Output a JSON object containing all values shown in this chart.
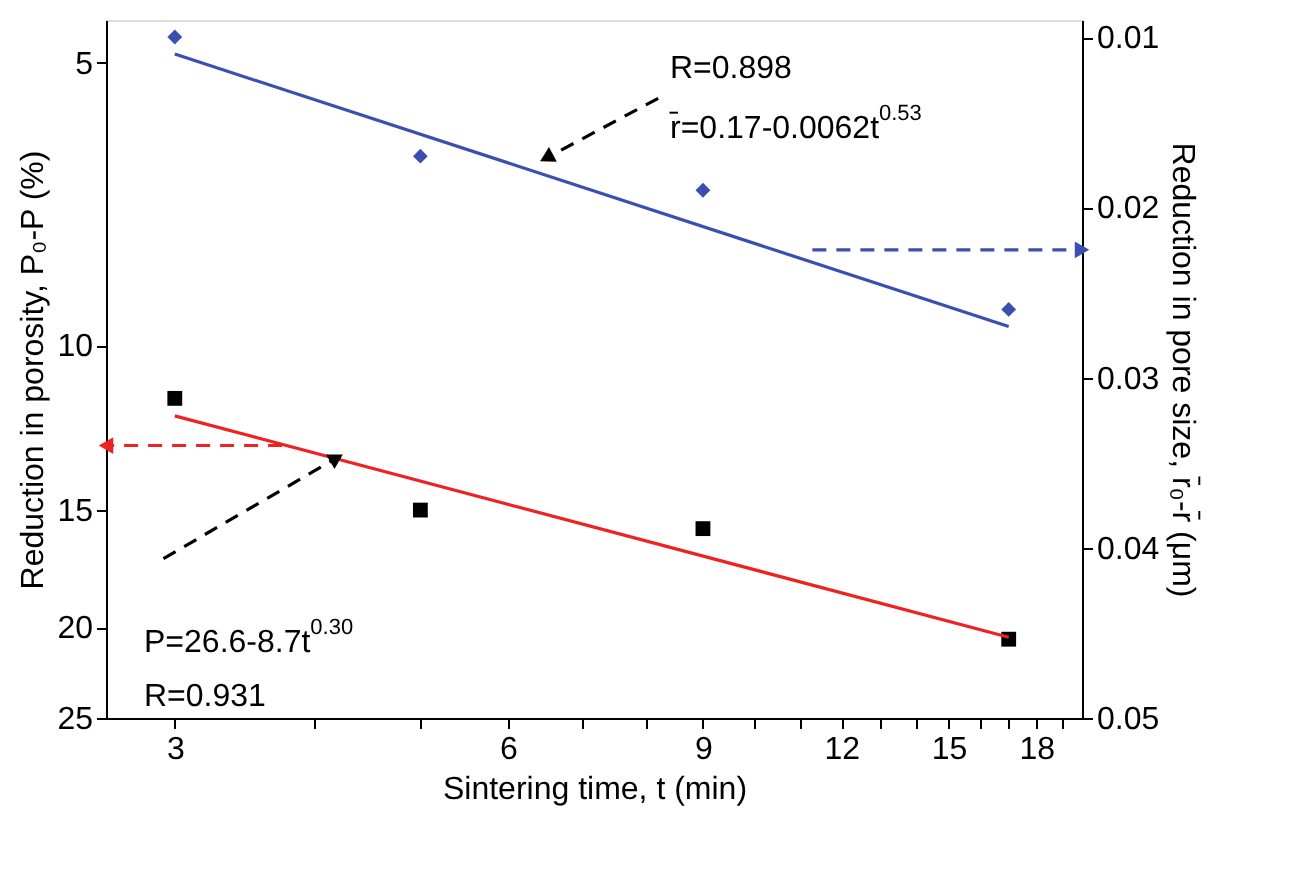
{
  "chart_data": {
    "type": "scatter",
    "xlabel": "Sintering time, t (min)",
    "ylabel": "Reduction in porosity, P₀-P (%)",
    "y2label": "Reduction in pore size, r̄₀-r̄ (μm)",
    "log": "xy",
    "xlim": [
      2.6,
      19.8
    ],
    "xticks": [
      3,
      {
        "value": 4,
        "label": null
      },
      {
        "value": 5,
        "label": null
      },
      6,
      {
        "value": 7,
        "label": null
      },
      {
        "value": 8,
        "label": null
      },
      9,
      {
        "value": 10,
        "label": null
      },
      {
        "value": 11,
        "label": null
      },
      12,
      {
        "value": 13,
        "label": null
      },
      {
        "value": 14,
        "label": null
      },
      15,
      {
        "value": 16,
        "label": null
      },
      {
        "value": 17,
        "label": null
      },
      18,
      {
        "value": 19,
        "label": null
      }
    ],
    "ylim": [
      25,
      4.5
    ],
    "yticks": [
      5,
      10,
      15,
      20,
      25
    ],
    "y2lim": [
      0.05,
      0.009
    ],
    "y2ticks": [
      0.01,
      0.02,
      0.03,
      0.04,
      0.05
    ],
    "grid": false,
    "series": [
      {
        "marker": "square",
        "color": "#000000",
        "x": [
          3,
          5,
          9,
          17
        ],
        "values": [
          11.4,
          15.0,
          15.7,
          20.6
        ]
      },
      {
        "type": "line",
        "color": "#ee2222",
        "x": [
          3,
          17
        ],
        "values": [
          11.9,
          20.5
        ]
      },
      {
        "marker": "diamond",
        "axis": "y2",
        "color": "#3a4fb0",
        "x": [
          3,
          5,
          9,
          17
        ],
        "values": [
          0.01,
          0.017,
          0.019,
          0.026
        ]
      },
      {
        "type": "line",
        "axis": "y2",
        "color": "#3a4fb0",
        "x": [
          3,
          17
        ],
        "values": [
          0.011,
          0.027
        ]
      },
      {
        "type": "line",
        "line_style": "dashed",
        "marker": "triangle",
        "color": "#ee2222",
        "x": [
          3.75,
          2.6
        ],
        "values": [
          12.8,
          12.8
        ]
      },
      {
        "type": "line",
        "line_style": "dashed",
        "marker": "triangle",
        "axis": "y2",
        "color": "#3a4fb0",
        "x": [
          11.3,
          19.8
        ],
        "values": [
          0.0225,
          0.0225
        ]
      },
      {
        "type": "line",
        "line_style": "dashed",
        "marker": "triangle",
        "axis": "y2",
        "color": "#000000",
        "x": [
          8.2,
          6.5
        ],
        "values": [
          0.0136,
          0.0171
        ]
      },
      {
        "type": "line",
        "line_style": "dashed",
        "marker": "triangle",
        "color": "#000000",
        "x": [
          2.93,
          4.2
        ],
        "values": [
          16.9,
          13.2
        ]
      }
    ],
    "annotations": [
      "R=0.898",
      "r̄=0.17-0.0062t$^{0.53}$",
      "P=26.6-8.7t$^{0.30}$",
      "R=0.931"
    ]
  }
}
